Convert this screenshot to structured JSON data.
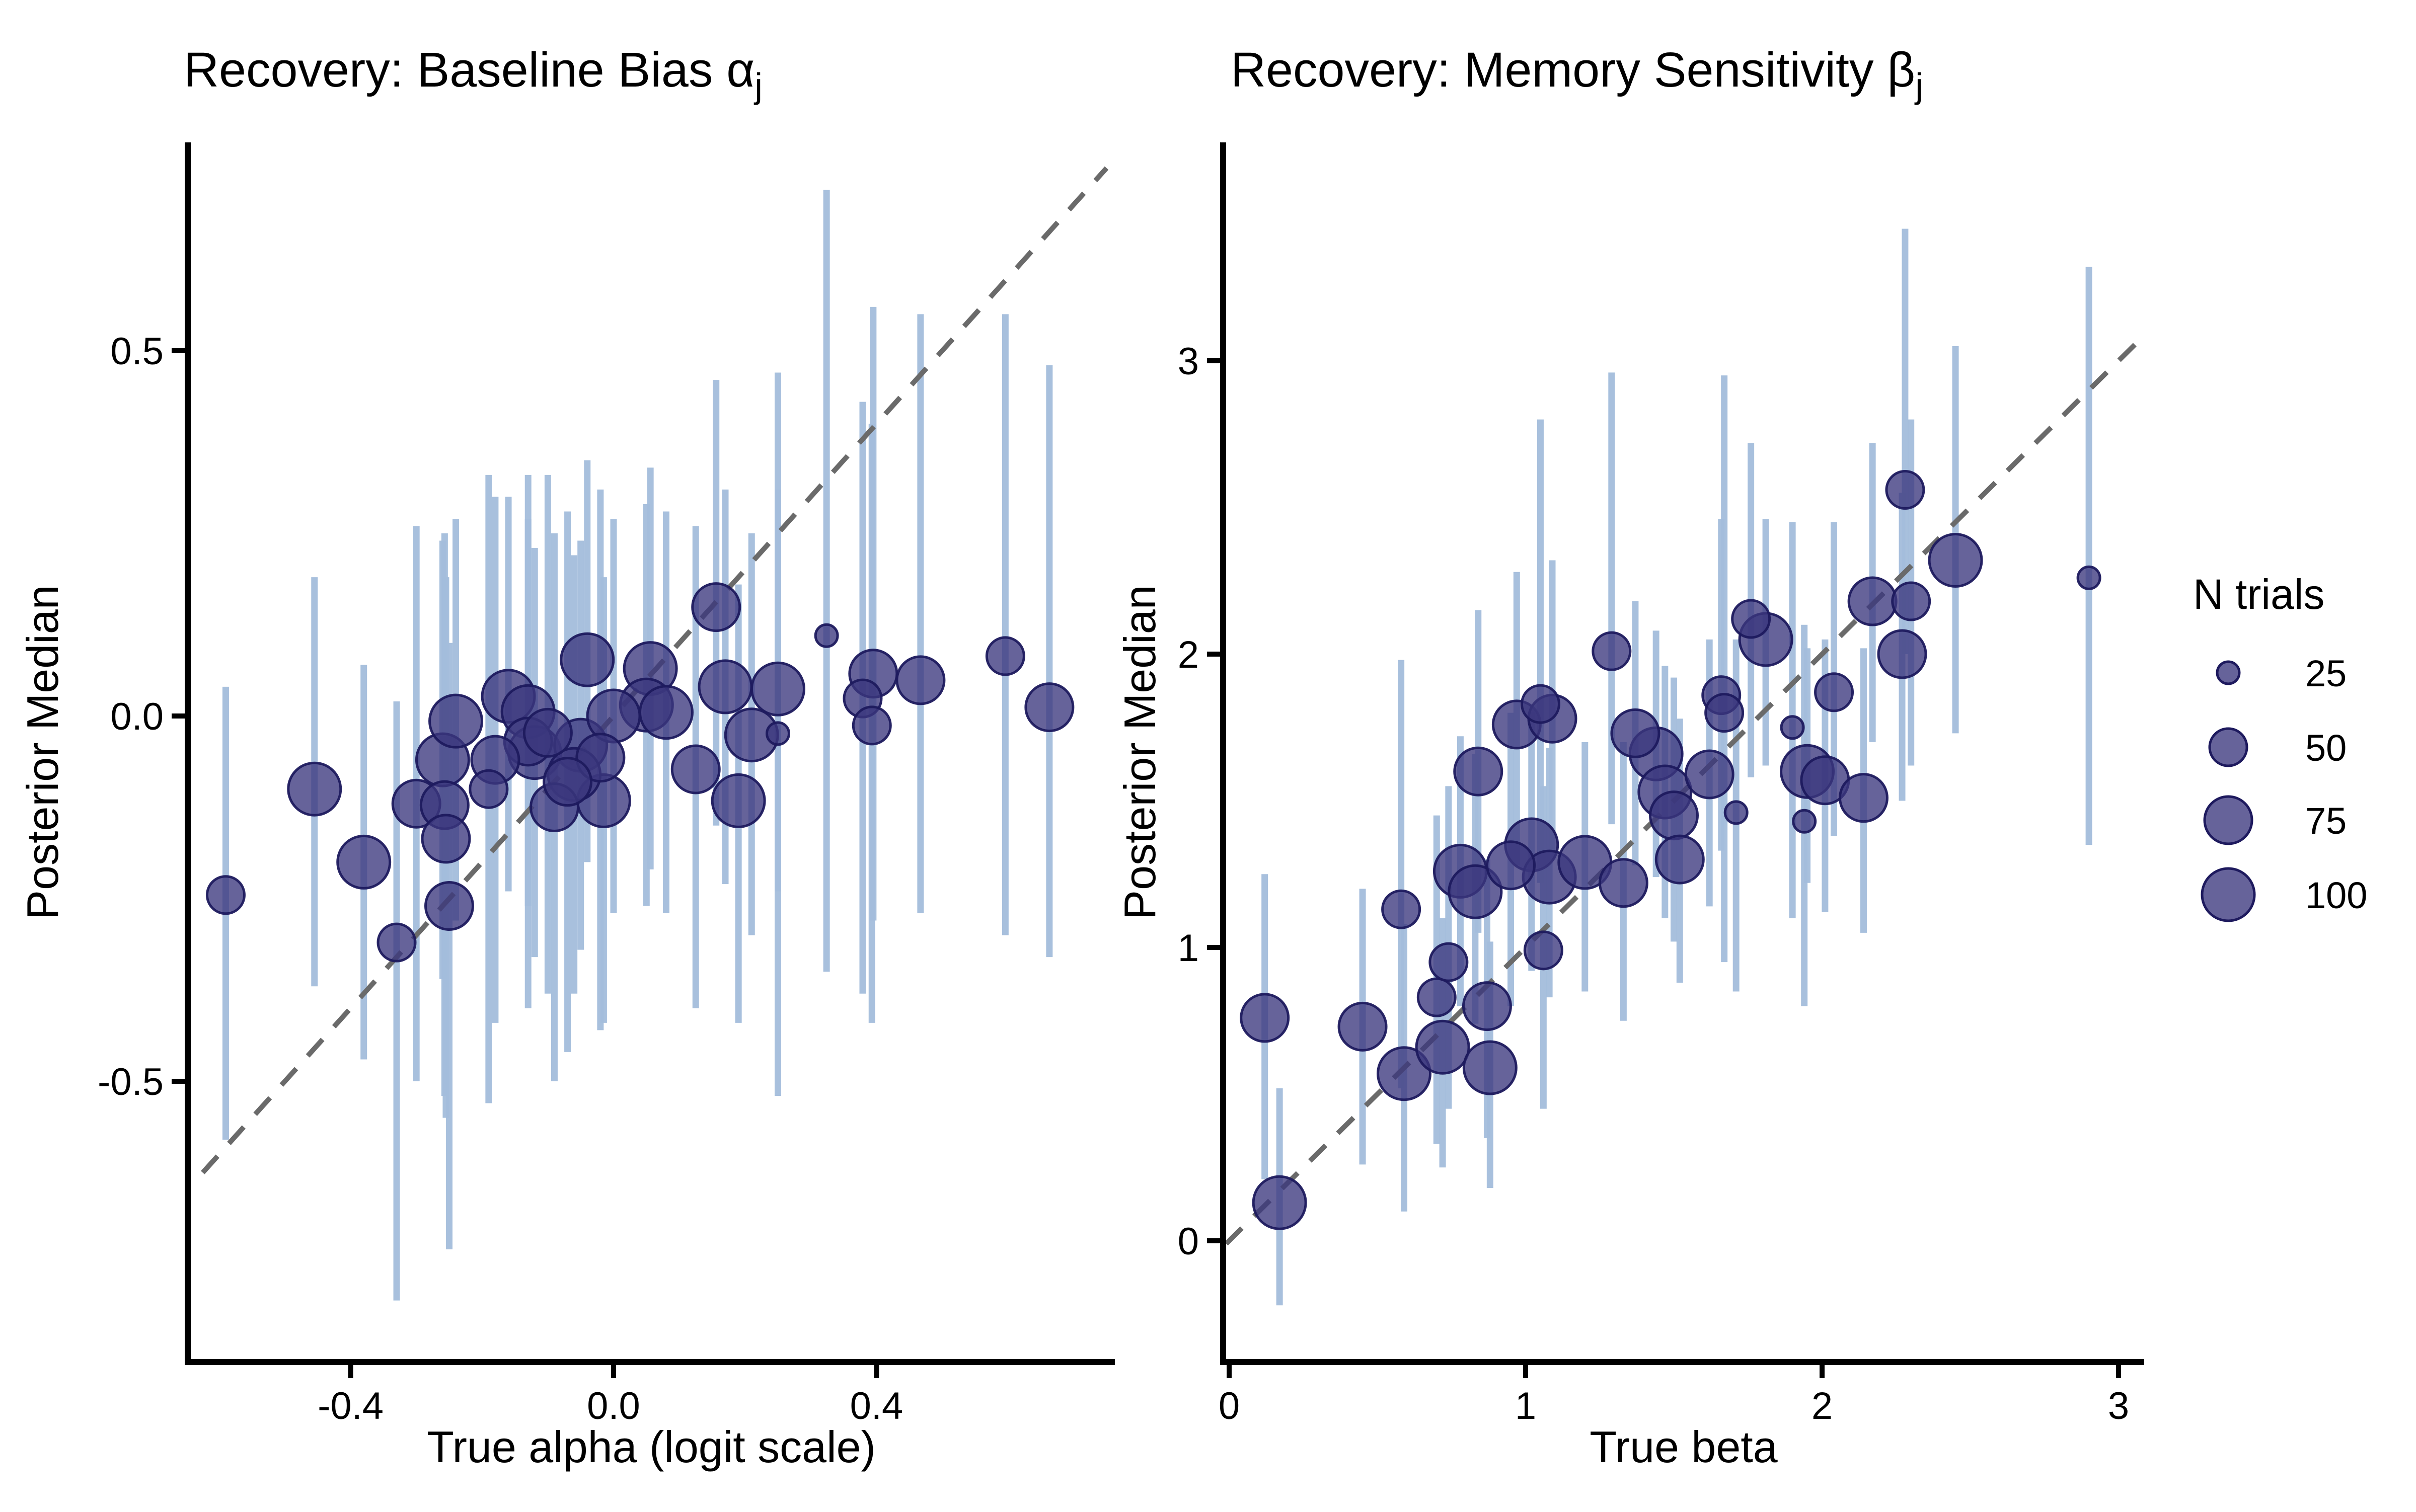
{
  "figure_type": "two-panel parameter recovery scatter plot",
  "style": {
    "background": "#ffffff",
    "point_fill": "#3B377E",
    "point_fill_opacity": 0.78,
    "point_stroke": "#1E1A5E",
    "point_stroke_width": 5,
    "errorbar_color": "#A3BDDB",
    "errorbar_width": 13,
    "identity_line_color": "#6A6A6A",
    "identity_dash": "44 34",
    "identity_width": 10,
    "axis_color": "#000000",
    "axis_width": 12,
    "tick_length": 32,
    "tick_width": 10,
    "tick_font_size": 76
  },
  "legend": {
    "title": "N trials",
    "items": [
      {
        "label": "25",
        "n": 25
      },
      {
        "label": "50",
        "n": 50
      },
      {
        "label": "75",
        "n": 75
      },
      {
        "label": "100",
        "n": 100
      }
    ]
  },
  "size_scale_radius_px": {
    "25": 22,
    "50": 37,
    "75": 47,
    "100": 52
  },
  "chart_data": [
    {
      "type": "scatter",
      "title": "Recovery: Baseline Bias α",
      "title_sub": "j",
      "xlabel": "True alpha (logit scale)",
      "ylabel": "Posterior Median",
      "xlim": [
        -0.65,
        0.75
      ],
      "ylim": [
        -0.88,
        0.79
      ],
      "x_ticks": [
        {
          "v": -0.4,
          "label": "-0.4"
        },
        {
          "v": 0.0,
          "label": "0.0"
        },
        {
          "v": 0.4,
          "label": "0.4"
        }
      ],
      "y_ticks": [
        {
          "v": 0.5,
          "label": "0.5"
        },
        {
          "v": 0.0,
          "label": "0.0"
        },
        {
          "v": -0.5,
          "label": "-0.5"
        }
      ],
      "identity_line": true,
      "grid": false,
      "columns": [
        "true_alpha",
        "posterior_median",
        "n_trials",
        "ci_lower",
        "ci_upper"
      ],
      "points": [
        [
          -0.59,
          -0.245,
          50,
          -0.58,
          0.04
        ],
        [
          -0.455,
          -0.1,
          100,
          -0.37,
          0.19
        ],
        [
          -0.38,
          -0.2,
          100,
          -0.47,
          0.07
        ],
        [
          -0.33,
          -0.31,
          50,
          -0.8,
          0.02
        ],
        [
          -0.3,
          -0.12,
          75,
          -0.5,
          0.26
        ],
        [
          -0.257,
          -0.122,
          75,
          -0.52,
          0.25
        ],
        [
          -0.26,
          -0.06,
          100,
          -0.36,
          0.24
        ],
        [
          -0.25,
          -0.26,
          75,
          -0.73,
          0.1
        ],
        [
          -0.24,
          -0.007,
          100,
          -0.28,
          0.27
        ],
        [
          -0.255,
          -0.168,
          75,
          -0.55,
          0.19
        ],
        [
          -0.16,
          0.027,
          100,
          -0.24,
          0.3
        ],
        [
          -0.13,
          0.006,
          100,
          -0.26,
          0.27
        ],
        [
          -0.13,
          -0.035,
          75,
          -0.4,
          0.33
        ],
        [
          -0.18,
          -0.06,
          75,
          -0.42,
          0.3
        ],
        [
          -0.09,
          -0.125,
          75,
          -0.5,
          0.25
        ],
        [
          -0.04,
          0.077,
          100,
          -0.2,
          0.35
        ],
        [
          -0.02,
          -0.057,
          75,
          -0.43,
          0.31
        ],
        [
          -0.015,
          -0.116,
          100,
          -0.42,
          0.19
        ],
        [
          0.056,
          0.065,
          100,
          -0.21,
          0.34
        ],
        [
          0.05,
          0.015,
          100,
          -0.26,
          0.29
        ],
        [
          0.08,
          0.005,
          100,
          -0.27,
          0.28
        ],
        [
          0.156,
          0.149,
          75,
          -0.15,
          0.46
        ],
        [
          0.17,
          0.04,
          100,
          -0.23,
          0.31
        ],
        [
          0.25,
          0.037,
          100,
          -0.24,
          0.31
        ],
        [
          0.21,
          -0.026,
          100,
          -0.3,
          0.25
        ],
        [
          0.25,
          -0.024,
          25,
          -0.52,
          0.47
        ],
        [
          0.19,
          -0.116,
          100,
          -0.42,
          0.18
        ],
        [
          0.125,
          -0.073,
          75,
          -0.4,
          0.26
        ],
        [
          0.324,
          0.11,
          25,
          -0.35,
          0.72
        ],
        [
          0.395,
          0.058,
          75,
          -0.28,
          0.56
        ],
        [
          0.467,
          0.049,
          75,
          -0.27,
          0.55
        ],
        [
          0.379,
          0.024,
          50,
          -0.38,
          0.43
        ],
        [
          0.393,
          -0.013,
          50,
          -0.42,
          0.4
        ],
        [
          0.596,
          0.082,
          50,
          -0.3,
          0.55
        ],
        [
          0.663,
          0.012,
          75,
          -0.33,
          0.48
        ],
        [
          -0.12,
          -0.05,
          100,
          -0.33,
          0.23
        ],
        [
          -0.07,
          -0.09,
          75,
          -0.46,
          0.28
        ],
        [
          -0.05,
          -0.04,
          100,
          -0.32,
          0.24
        ],
        [
          0.0,
          0.0,
          100,
          -0.27,
          0.27
        ],
        [
          -0.19,
          -0.1,
          50,
          -0.53,
          0.33
        ],
        [
          -0.06,
          -0.08,
          100,
          -0.38,
          0.22
        ],
        [
          -0.1,
          -0.023,
          75,
          -0.38,
          0.33
        ]
      ]
    },
    {
      "type": "scatter",
      "title": "Recovery: Memory Sensitivity β",
      "title_sub": "j",
      "xlabel": "True beta",
      "ylabel": "Posterior Median",
      "xlim": [
        -0.02,
        3.1
      ],
      "ylim": [
        -0.41,
        3.65
      ],
      "x_ticks": [
        {
          "v": 0,
          "label": "0"
        },
        {
          "v": 1,
          "label": "1"
        },
        {
          "v": 2,
          "label": "2"
        },
        {
          "v": 3,
          "label": "3"
        }
      ],
      "y_ticks": [
        {
          "v": 0,
          "label": "0"
        },
        {
          "v": 1,
          "label": "1"
        },
        {
          "v": 2,
          "label": "2"
        },
        {
          "v": 3,
          "label": "3"
        }
      ],
      "identity_line": true,
      "grid": false,
      "columns": [
        "true_beta",
        "posterior_median",
        "n_trials",
        "ci_lower",
        "ci_upper"
      ],
      "points": [
        [
          0.12,
          0.76,
          75,
          0.21,
          1.25
        ],
        [
          0.17,
          0.13,
          100,
          -0.22,
          0.52
        ],
        [
          0.45,
          0.73,
          75,
          0.26,
          1.2
        ],
        [
          0.58,
          1.13,
          50,
          0.52,
          1.98
        ],
        [
          0.59,
          0.57,
          100,
          0.1,
          1.08
        ],
        [
          0.7,
          0.83,
          50,
          0.33,
          1.45
        ],
        [
          0.72,
          0.66,
          100,
          0.25,
          1.1
        ],
        [
          0.74,
          0.95,
          50,
          0.45,
          1.55
        ],
        [
          0.88,
          0.59,
          100,
          0.18,
          1.02
        ],
        [
          0.87,
          0.8,
          75,
          0.35,
          1.3
        ],
        [
          0.78,
          1.26,
          100,
          0.8,
          1.72
        ],
        [
          0.83,
          1.19,
          100,
          0.74,
          1.66
        ],
        [
          0.84,
          1.6,
          75,
          1.05,
          2.15
        ],
        [
          0.95,
          1.28,
          75,
          0.8,
          1.8
        ],
        [
          0.97,
          1.76,
          75,
          1.28,
          2.28
        ],
        [
          1.02,
          1.35,
          100,
          0.92,
          1.8
        ],
        [
          1.08,
          1.24,
          100,
          0.83,
          1.68
        ],
        [
          1.06,
          0.99,
          50,
          0.45,
          1.55
        ],
        [
          1.09,
          1.78,
          75,
          1.3,
          2.32
        ],
        [
          1.05,
          1.83,
          50,
          1.22,
          2.8
        ],
        [
          1.29,
          2.01,
          50,
          1.42,
          2.96
        ],
        [
          1.33,
          1.22,
          75,
          0.75,
          1.7
        ],
        [
          1.2,
          1.29,
          100,
          0.85,
          1.7
        ],
        [
          1.37,
          1.73,
          75,
          1.28,
          2.18
        ],
        [
          1.44,
          1.66,
          100,
          1.24,
          2.08
        ],
        [
          1.47,
          1.53,
          100,
          1.1,
          1.96
        ],
        [
          1.5,
          1.45,
          75,
          1.02,
          1.92
        ],
        [
          1.62,
          1.59,
          75,
          1.14,
          2.05
        ],
        [
          1.66,
          1.86,
          50,
          1.33,
          2.46
        ],
        [
          1.67,
          1.8,
          50,
          0.95,
          2.95
        ],
        [
          1.52,
          1.3,
          75,
          0.88,
          1.78
        ],
        [
          1.71,
          1.46,
          25,
          0.85,
          2.05
        ],
        [
          1.76,
          2.12,
          50,
          1.58,
          2.72
        ],
        [
          1.81,
          2.05,
          100,
          1.62,
          2.46
        ],
        [
          1.9,
          1.75,
          25,
          1.1,
          2.45
        ],
        [
          1.94,
          1.43,
          25,
          0.8,
          2.1
        ],
        [
          1.95,
          1.6,
          100,
          1.22,
          2.02
        ],
        [
          2.01,
          1.57,
          75,
          1.12,
          2.05
        ],
        [
          2.04,
          1.87,
          50,
          1.38,
          2.45
        ],
        [
          2.14,
          1.51,
          75,
          1.05,
          2.02
        ],
        [
          2.17,
          2.18,
          75,
          1.7,
          2.72
        ],
        [
          2.3,
          2.18,
          50,
          1.62,
          2.8
        ],
        [
          2.27,
          2.0,
          75,
          1.5,
          2.55
        ],
        [
          2.28,
          2.56,
          50,
          2.0,
          3.45
        ],
        [
          2.45,
          2.32,
          100,
          1.73,
          3.05
        ],
        [
          2.9,
          2.26,
          25,
          1.35,
          3.32
        ]
      ]
    }
  ]
}
